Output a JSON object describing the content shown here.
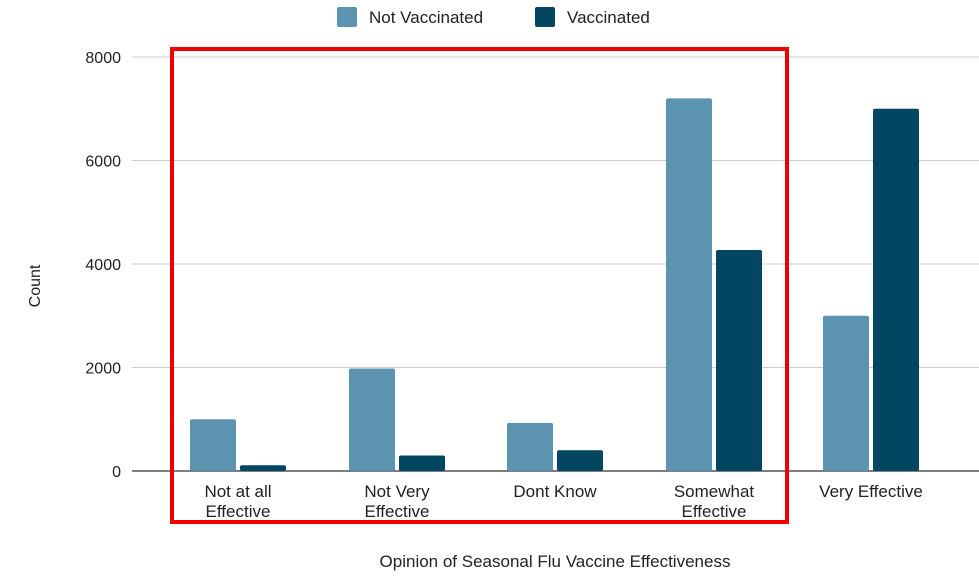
{
  "chart_data": {
    "type": "bar",
    "categories": [
      [
        "Not at all",
        "Effective"
      ],
      [
        "Not Very",
        "Effective"
      ],
      [
        "Dont Know"
      ],
      [
        "Somewhat",
        "Effective"
      ],
      [
        "Very Effective"
      ]
    ],
    "series": [
      {
        "name": "Not Vaccinated",
        "color": "#5b93b0",
        "values": [
          1000,
          1980,
          930,
          7200,
          3000
        ]
      },
      {
        "name": "Vaccinated",
        "color": "#034662",
        "values": [
          110,
          300,
          400,
          4270,
          7000
        ]
      }
    ],
    "xlabel": "Opinion of Seasonal Flu Vaccine Effectiveness",
    "ylabel": "Count",
    "ylim": [
      0,
      8000
    ],
    "yticks": [
      0,
      2000,
      4000,
      6000,
      8000
    ],
    "grid": true,
    "legend_position": "top-center",
    "highlight": {
      "shape": "rectangle",
      "color": "#ee0000",
      "categories_covered": [
        "Not at all Effective",
        "Not Very Effective",
        "Dont Know",
        "Somewhat Effective"
      ]
    }
  }
}
